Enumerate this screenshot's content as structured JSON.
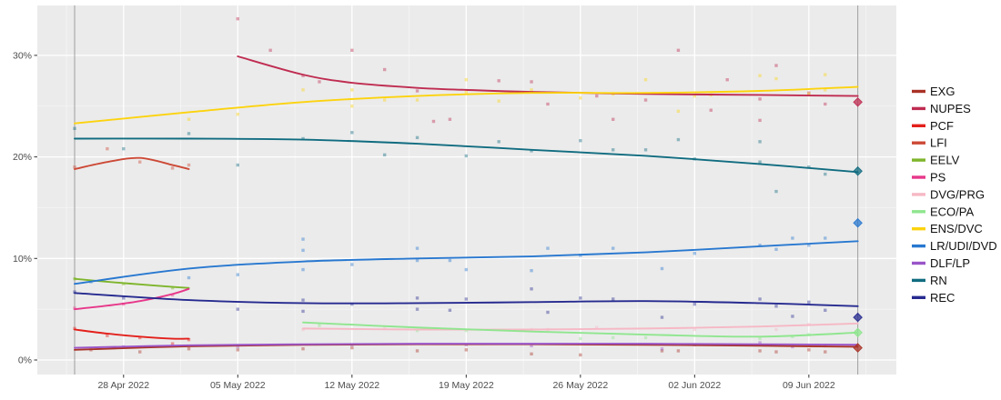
{
  "chart_data": {
    "type": "scatter",
    "subtype": "polling-scatter-with-loess-trends",
    "title": "",
    "xlabel": "",
    "ylabel": "",
    "x_axis": {
      "unit": "days since 2022-04-23",
      "tick_days": [
        5,
        12,
        19,
        26,
        33,
        40,
        47
      ],
      "tick_labels": [
        "28 Apr 2022",
        "05 May 2022",
        "12 May 2022",
        "19 May 2022",
        "26 May 2022",
        "02 Jun 2022",
        "09 Jun 2022"
      ],
      "minor_days": [
        1.5,
        8.5,
        15.5,
        22.5,
        29.5,
        36.5,
        43.5,
        50.5
      ],
      "range_days": [
        -0.3,
        52.4
      ]
    },
    "y_axis": {
      "tick_values": [
        0,
        10,
        20,
        30
      ],
      "tick_labels": [
        "0%",
        "10%",
        "20%",
        "30%"
      ],
      "minor_values": [
        5,
        15,
        25
      ],
      "range": [
        -1.4,
        34.9
      ]
    },
    "grid": "on",
    "legend_position": "right",
    "vlines": [
      {
        "name": "campaign-start-line",
        "day": 2
      },
      {
        "name": "election-day-line",
        "day": 50
      }
    ],
    "series": [
      {
        "name": "EXG",
        "color": "#a93226",
        "trend": [
          [
            2,
            1.0
          ],
          [
            9,
            1.35
          ],
          [
            16,
            1.5
          ],
          [
            23,
            1.55
          ],
          [
            30,
            1.55
          ],
          [
            37,
            1.5
          ],
          [
            44,
            1.4
          ],
          [
            50,
            1.3
          ]
        ],
        "points": [
          [
            3,
            1.0
          ],
          [
            6,
            0.8
          ],
          [
            9,
            1.1
          ],
          [
            12,
            1.0
          ],
          [
            16,
            1.1
          ],
          [
            19,
            1.2
          ],
          [
            23,
            0.9
          ],
          [
            26,
            1.0
          ],
          [
            30,
            0.6
          ],
          [
            33,
            0.5
          ],
          [
            38,
            0.9
          ],
          [
            39,
            0.9
          ],
          [
            44,
            0.9
          ],
          [
            45,
            0.8
          ],
          [
            47,
            1.0
          ],
          [
            48,
            0.8
          ]
        ],
        "result": 1.2
      },
      {
        "name": "NUPES",
        "color": "#bf2c51",
        "trend": [
          [
            12,
            29.9
          ],
          [
            16,
            28.1
          ],
          [
            19,
            27.3
          ],
          [
            23,
            26.8
          ],
          [
            26,
            26.6
          ],
          [
            30,
            26.4
          ],
          [
            37,
            26.2
          ],
          [
            44,
            26.1
          ],
          [
            50,
            26.0
          ]
        ],
        "points": [
          [
            12,
            33.6
          ],
          [
            14,
            30.5
          ],
          [
            16,
            28.0
          ],
          [
            17,
            27.4
          ],
          [
            19,
            30.5
          ],
          [
            21,
            28.6
          ],
          [
            23,
            26.5
          ],
          [
            24,
            23.5
          ],
          [
            25,
            23.7
          ],
          [
            28,
            27.5
          ],
          [
            30,
            27.4
          ],
          [
            31,
            25.2
          ],
          [
            34,
            26.0
          ],
          [
            35,
            23.7
          ],
          [
            37,
            25.6
          ],
          [
            39,
            30.5
          ],
          [
            41,
            24.6
          ],
          [
            42,
            27.6
          ],
          [
            44,
            23.6
          ],
          [
            44,
            25.7
          ],
          [
            45,
            29.0
          ],
          [
            47,
            26.3
          ],
          [
            48,
            25.2
          ]
        ],
        "result": 25.4
      },
      {
        "name": "PCF",
        "color": "#e3201b",
        "trend": [
          [
            2,
            3.0
          ],
          [
            4,
            2.6
          ],
          [
            6,
            2.3
          ],
          [
            8,
            2.1
          ],
          [
            9,
            2.1
          ]
        ],
        "points": [
          [
            2,
            3.1
          ],
          [
            4,
            2.4
          ],
          [
            6,
            2.2
          ],
          [
            8,
            1.6
          ],
          [
            9,
            2.0
          ]
        ],
        "result": null
      },
      {
        "name": "LFI",
        "color": "#cc4936",
        "trend": [
          [
            2,
            18.8
          ],
          [
            4,
            19.5
          ],
          [
            6,
            19.9
          ],
          [
            8,
            19.2
          ],
          [
            9,
            18.8
          ]
        ],
        "points": [
          [
            2,
            19.0
          ],
          [
            4,
            20.8
          ],
          [
            6,
            19.5
          ],
          [
            8,
            18.9
          ],
          [
            9,
            19.2
          ]
        ],
        "result": null
      },
      {
        "name": "EELV",
        "color": "#7eb52b",
        "trend": [
          [
            2,
            8.0
          ],
          [
            4,
            7.7
          ],
          [
            6,
            7.45
          ],
          [
            8,
            7.2
          ],
          [
            9,
            7.1
          ]
        ],
        "points": [
          [
            2,
            8.0
          ],
          [
            5,
            7.5
          ],
          [
            8,
            7.1
          ]
        ],
        "result": null
      },
      {
        "name": "PS",
        "color": "#e7378a",
        "trend": [
          [
            2,
            5.0
          ],
          [
            4,
            5.35
          ],
          [
            6,
            5.8
          ],
          [
            8,
            6.5
          ],
          [
            9,
            7.0
          ]
        ],
        "points": [
          [
            2,
            5.1
          ],
          [
            5,
            5.5
          ],
          [
            8,
            6.4
          ]
        ],
        "result": null
      },
      {
        "name": "DVG/PRG",
        "color": "#f6b8c5",
        "trend": [
          [
            16,
            3.1
          ],
          [
            23,
            3.0
          ],
          [
            30,
            3.0
          ],
          [
            37,
            3.1
          ],
          [
            44,
            3.3
          ],
          [
            50,
            3.6
          ]
        ],
        "points": [
          [
            16,
            3.0
          ],
          [
            21,
            3.1
          ],
          [
            30,
            3.0
          ],
          [
            31,
            3.0
          ],
          [
            34,
            3.2
          ],
          [
            40,
            3.0
          ],
          [
            45,
            3.0
          ],
          [
            47,
            3.5
          ]
        ],
        "result": null
      },
      {
        "name": "ECO/PA",
        "color": "#8fe68f",
        "trend": [
          [
            16,
            3.7
          ],
          [
            23,
            3.2
          ],
          [
            30,
            2.8
          ],
          [
            37,
            2.5
          ],
          [
            44,
            2.3
          ],
          [
            50,
            2.7
          ]
        ],
        "points": [
          [
            17,
            3.4
          ],
          [
            23,
            2.9
          ],
          [
            26,
            2.9
          ],
          [
            33,
            2.1
          ],
          [
            35,
            2.2
          ],
          [
            37,
            2.2
          ],
          [
            44,
            2.1
          ],
          [
            46,
            2.3
          ],
          [
            47,
            2.5
          ]
        ],
        "result": 2.7
      },
      {
        "name": "ENS/DVC",
        "color": "#fcd30e",
        "trend": [
          [
            2,
            23.3
          ],
          [
            9,
            24.4
          ],
          [
            16,
            25.4
          ],
          [
            23,
            26.0
          ],
          [
            30,
            26.3
          ],
          [
            37,
            26.3
          ],
          [
            44,
            26.5
          ],
          [
            50,
            26.9
          ]
        ],
        "points": [
          [
            9,
            23.7
          ],
          [
            12,
            24.2
          ],
          [
            16,
            26.6
          ],
          [
            19,
            26.6
          ],
          [
            19,
            25.0
          ],
          [
            21,
            25.6
          ],
          [
            23,
            25.6
          ],
          [
            26,
            27.6
          ],
          [
            26,
            26.4
          ],
          [
            28,
            25.5
          ],
          [
            30,
            26.6
          ],
          [
            33,
            25.8
          ],
          [
            35,
            26.2
          ],
          [
            37,
            27.6
          ],
          [
            39,
            24.5
          ],
          [
            40,
            26.0
          ],
          [
            41,
            26.1
          ],
          [
            44,
            28.0
          ],
          [
            45,
            27.7
          ],
          [
            47,
            26.2
          ],
          [
            48,
            28.1
          ],
          [
            48,
            26.6
          ]
        ],
        "result": null
      },
      {
        "name": "LR/UDI/DVD",
        "color": "#2878d0",
        "trend": [
          [
            2,
            7.5
          ],
          [
            9,
            9.0
          ],
          [
            16,
            9.7
          ],
          [
            23,
            10.0
          ],
          [
            30,
            10.2
          ],
          [
            37,
            10.6
          ],
          [
            44,
            11.2
          ],
          [
            50,
            11.7
          ]
        ],
        "points": [
          [
            3,
            7.7
          ],
          [
            9,
            8.1
          ],
          [
            12,
            8.4
          ],
          [
            16,
            8.9
          ],
          [
            16,
            11.9
          ],
          [
            16,
            10.8
          ],
          [
            19,
            9.4
          ],
          [
            23,
            9.8
          ],
          [
            23,
            11.0
          ],
          [
            25,
            9.8
          ],
          [
            26,
            8.9
          ],
          [
            30,
            8.8
          ],
          [
            31,
            11.0
          ],
          [
            33,
            10.3
          ],
          [
            35,
            11.0
          ],
          [
            38,
            9.0
          ],
          [
            40,
            10.5
          ],
          [
            44,
            11.3
          ],
          [
            45,
            10.9
          ],
          [
            46,
            12.0
          ],
          [
            47,
            11.3
          ],
          [
            48,
            12.0
          ]
        ],
        "result": 13.5
      },
      {
        "name": "DLF/LP",
        "color": "#9a55c8",
        "trend": [
          [
            2,
            1.2
          ],
          [
            9,
            1.45
          ],
          [
            16,
            1.55
          ],
          [
            23,
            1.6
          ],
          [
            30,
            1.6
          ],
          [
            37,
            1.6
          ],
          [
            44,
            1.55
          ],
          [
            50,
            1.5
          ]
        ],
        "points": [
          [
            5,
            1.3
          ],
          [
            12,
            1.3
          ],
          [
            19,
            1.5
          ],
          [
            26,
            1.5
          ],
          [
            30,
            1.4
          ],
          [
            38,
            1.1
          ],
          [
            40,
            1.5
          ],
          [
            44,
            1.7
          ],
          [
            46,
            1.3
          ],
          [
            48,
            1.4
          ]
        ],
        "result": null
      },
      {
        "name": "RN",
        "color": "#106c80",
        "trend": [
          [
            2,
            21.8
          ],
          [
            9,
            21.8
          ],
          [
            16,
            21.7
          ],
          [
            23,
            21.3
          ],
          [
            30,
            20.7
          ],
          [
            37,
            20.1
          ],
          [
            44,
            19.3
          ],
          [
            50,
            18.5
          ]
        ],
        "points": [
          [
            2,
            22.8
          ],
          [
            5,
            20.8
          ],
          [
            9,
            22.3
          ],
          [
            12,
            19.2
          ],
          [
            16,
            21.8
          ],
          [
            19,
            22.4
          ],
          [
            21,
            20.2
          ],
          [
            23,
            21.9
          ],
          [
            26,
            20.1
          ],
          [
            28,
            21.5
          ],
          [
            30,
            20.6
          ],
          [
            33,
            21.6
          ],
          [
            35,
            20.7
          ],
          [
            37,
            20.7
          ],
          [
            39,
            21.7
          ],
          [
            40,
            19.8
          ],
          [
            44,
            21.5
          ],
          [
            44,
            19.5
          ],
          [
            45,
            16.6
          ],
          [
            47,
            19.0
          ],
          [
            48,
            18.3
          ]
        ],
        "result": 18.6
      },
      {
        "name": "REC",
        "color": "#262a8f",
        "trend": [
          [
            2,
            6.6
          ],
          [
            9,
            5.9
          ],
          [
            16,
            5.6
          ],
          [
            23,
            5.6
          ],
          [
            30,
            5.7
          ],
          [
            37,
            5.8
          ],
          [
            44,
            5.6
          ],
          [
            50,
            5.3
          ]
        ],
        "points": [
          [
            2,
            6.7
          ],
          [
            5,
            6.1
          ],
          [
            12,
            5.0
          ],
          [
            16,
            5.9
          ],
          [
            16,
            4.8
          ],
          [
            19,
            5.5
          ],
          [
            23,
            6.1
          ],
          [
            23,
            5.0
          ],
          [
            25,
            4.9
          ],
          [
            26,
            6.0
          ],
          [
            30,
            7.0
          ],
          [
            31,
            4.7
          ],
          [
            33,
            6.1
          ],
          [
            35,
            6.0
          ],
          [
            38,
            4.2
          ],
          [
            40,
            5.5
          ],
          [
            44,
            6.0
          ],
          [
            45,
            5.3
          ],
          [
            46,
            4.3
          ],
          [
            47,
            5.7
          ],
          [
            48,
            4.9
          ]
        ],
        "result": 4.2
      }
    ],
    "panel_colors": {
      "panel_bg": "#ebebeb",
      "grid_major": "#ffffff",
      "grid_minor": "#f7f7f7",
      "vline": "#9e9e9e",
      "axis_text": "#4d4d4d",
      "tick_mark": "#333333"
    }
  },
  "legend": {
    "items": [
      "EXG",
      "NUPES",
      "PCF",
      "LFI",
      "EELV",
      "PS",
      "DVG/PRG",
      "ECO/PA",
      "ENS/DVC",
      "LR/UDI/DVD",
      "DLF/LP",
      "RN",
      "REC"
    ]
  }
}
